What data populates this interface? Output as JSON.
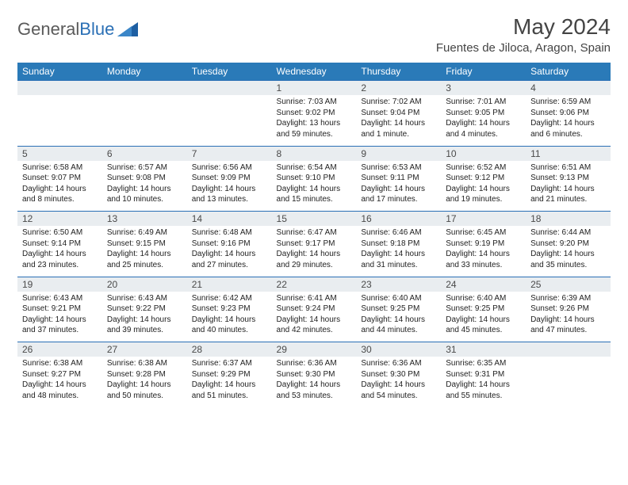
{
  "logo": {
    "text1": "General",
    "text2": "Blue"
  },
  "title": "May 2024",
  "location": "Fuentes de Jiloca, Aragon, Spain",
  "colors": {
    "header_bg": "#2a7ab8",
    "header_text": "#ffffff",
    "daynum_bg": "#e9edf0",
    "border": "#2a6fb5",
    "logo_gray": "#5a5a5a",
    "logo_blue": "#2a6fb5"
  },
  "weekdays": [
    "Sunday",
    "Monday",
    "Tuesday",
    "Wednesday",
    "Thursday",
    "Friday",
    "Saturday"
  ],
  "weeks": [
    {
      "nums": [
        "",
        "",
        "",
        "1",
        "2",
        "3",
        "4"
      ],
      "cells": [
        "",
        "",
        "",
        "Sunrise: 7:03 AM\nSunset: 9:02 PM\nDaylight: 13 hours and 59 minutes.",
        "Sunrise: 7:02 AM\nSunset: 9:04 PM\nDaylight: 14 hours and 1 minute.",
        "Sunrise: 7:01 AM\nSunset: 9:05 PM\nDaylight: 14 hours and 4 minutes.",
        "Sunrise: 6:59 AM\nSunset: 9:06 PM\nDaylight: 14 hours and 6 minutes."
      ]
    },
    {
      "nums": [
        "5",
        "6",
        "7",
        "8",
        "9",
        "10",
        "11"
      ],
      "cells": [
        "Sunrise: 6:58 AM\nSunset: 9:07 PM\nDaylight: 14 hours and 8 minutes.",
        "Sunrise: 6:57 AM\nSunset: 9:08 PM\nDaylight: 14 hours and 10 minutes.",
        "Sunrise: 6:56 AM\nSunset: 9:09 PM\nDaylight: 14 hours and 13 minutes.",
        "Sunrise: 6:54 AM\nSunset: 9:10 PM\nDaylight: 14 hours and 15 minutes.",
        "Sunrise: 6:53 AM\nSunset: 9:11 PM\nDaylight: 14 hours and 17 minutes.",
        "Sunrise: 6:52 AM\nSunset: 9:12 PM\nDaylight: 14 hours and 19 minutes.",
        "Sunrise: 6:51 AM\nSunset: 9:13 PM\nDaylight: 14 hours and 21 minutes."
      ]
    },
    {
      "nums": [
        "12",
        "13",
        "14",
        "15",
        "16",
        "17",
        "18"
      ],
      "cells": [
        "Sunrise: 6:50 AM\nSunset: 9:14 PM\nDaylight: 14 hours and 23 minutes.",
        "Sunrise: 6:49 AM\nSunset: 9:15 PM\nDaylight: 14 hours and 25 minutes.",
        "Sunrise: 6:48 AM\nSunset: 9:16 PM\nDaylight: 14 hours and 27 minutes.",
        "Sunrise: 6:47 AM\nSunset: 9:17 PM\nDaylight: 14 hours and 29 minutes.",
        "Sunrise: 6:46 AM\nSunset: 9:18 PM\nDaylight: 14 hours and 31 minutes.",
        "Sunrise: 6:45 AM\nSunset: 9:19 PM\nDaylight: 14 hours and 33 minutes.",
        "Sunrise: 6:44 AM\nSunset: 9:20 PM\nDaylight: 14 hours and 35 minutes."
      ]
    },
    {
      "nums": [
        "19",
        "20",
        "21",
        "22",
        "23",
        "24",
        "25"
      ],
      "cells": [
        "Sunrise: 6:43 AM\nSunset: 9:21 PM\nDaylight: 14 hours and 37 minutes.",
        "Sunrise: 6:43 AM\nSunset: 9:22 PM\nDaylight: 14 hours and 39 minutes.",
        "Sunrise: 6:42 AM\nSunset: 9:23 PM\nDaylight: 14 hours and 40 minutes.",
        "Sunrise: 6:41 AM\nSunset: 9:24 PM\nDaylight: 14 hours and 42 minutes.",
        "Sunrise: 6:40 AM\nSunset: 9:25 PM\nDaylight: 14 hours and 44 minutes.",
        "Sunrise: 6:40 AM\nSunset: 9:25 PM\nDaylight: 14 hours and 45 minutes.",
        "Sunrise: 6:39 AM\nSunset: 9:26 PM\nDaylight: 14 hours and 47 minutes."
      ]
    },
    {
      "nums": [
        "26",
        "27",
        "28",
        "29",
        "30",
        "31",
        ""
      ],
      "cells": [
        "Sunrise: 6:38 AM\nSunset: 9:27 PM\nDaylight: 14 hours and 48 minutes.",
        "Sunrise: 6:38 AM\nSunset: 9:28 PM\nDaylight: 14 hours and 50 minutes.",
        "Sunrise: 6:37 AM\nSunset: 9:29 PM\nDaylight: 14 hours and 51 minutes.",
        "Sunrise: 6:36 AM\nSunset: 9:30 PM\nDaylight: 14 hours and 53 minutes.",
        "Sunrise: 6:36 AM\nSunset: 9:30 PM\nDaylight: 14 hours and 54 minutes.",
        "Sunrise: 6:35 AM\nSunset: 9:31 PM\nDaylight: 14 hours and 55 minutes.",
        ""
      ]
    }
  ]
}
